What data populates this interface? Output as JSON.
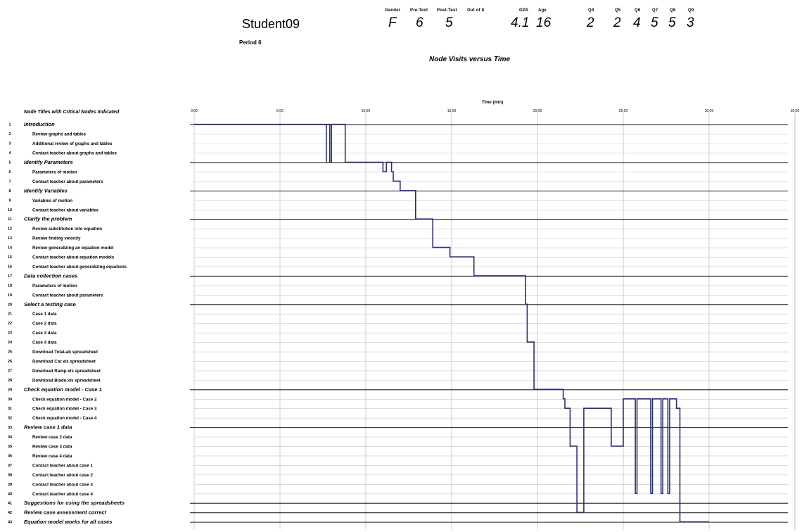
{
  "header": {
    "student": "Student09",
    "period": "Period 6",
    "chart_title": "Node Visits versus Time",
    "fields": [
      {
        "label": "Gender",
        "value": "F"
      },
      {
        "label": "Pre-Test",
        "value": "6"
      },
      {
        "label": "Post-Test",
        "value": "5"
      },
      {
        "label": "Out of 8",
        "value": ""
      },
      {
        "label": "GPA",
        "value": "4.1"
      },
      {
        "label": "Age",
        "value": "16"
      },
      {
        "label": "Q4",
        "value": "2"
      },
      {
        "label": "Q5",
        "value": "2"
      },
      {
        "label": "Q6",
        "value": "4"
      },
      {
        "label": "Q7",
        "value": "5"
      },
      {
        "label": "Q8",
        "value": "5"
      },
      {
        "label": "Q9",
        "value": "3"
      }
    ]
  },
  "chart_data": {
    "type": "line",
    "title": "Node Visits versus Time",
    "xlabel": "Time (min)",
    "ylabel": "Node Titles with Critical Nodes Indicated",
    "xlim": [
      0,
      35
    ],
    "xticks": [
      "0:00",
      "5:00",
      "10:00",
      "15:00",
      "20:00",
      "25:00",
      "30:00",
      "35:00"
    ],
    "line_color": "#2b2f7a",
    "nodes": [
      {
        "num": "1",
        "title": "Introduction",
        "critical": true
      },
      {
        "num": "2",
        "title": "Review graphs and tables",
        "critical": false
      },
      {
        "num": "3",
        "title": "Additional review of graphs and tables",
        "critical": false
      },
      {
        "num": "4",
        "title": "Contact teacher about graphs and tables",
        "critical": false
      },
      {
        "num": "5",
        "title": "Identify Parameters",
        "critical": true
      },
      {
        "num": "6",
        "title": "Parameters of motion",
        "critical": false
      },
      {
        "num": "7",
        "title": "Contact teacher about parameters",
        "critical": false
      },
      {
        "num": "8",
        "title": "Identify Variables",
        "critical": true
      },
      {
        "num": "9",
        "title": "Variables of motion",
        "critical": false
      },
      {
        "num": "10",
        "title": "Contact teacher about variables",
        "critical": false
      },
      {
        "num": "11",
        "title": "Clarify the problem",
        "critical": true
      },
      {
        "num": "12",
        "title": "Review substitution into equation",
        "critical": false
      },
      {
        "num": "13",
        "title": "Review finding velocity",
        "critical": false
      },
      {
        "num": "14",
        "title": "Review generalizing an equation model",
        "critical": false
      },
      {
        "num": "15",
        "title": "Contact teacher about equation models",
        "critical": false
      },
      {
        "num": "16",
        "title": "Contact teacher about generalizing equations",
        "critical": false
      },
      {
        "num": "17",
        "title": "Data collection cases",
        "critical": true
      },
      {
        "num": "18",
        "title": "Parameters of motion",
        "critical": false
      },
      {
        "num": "19",
        "title": "Contact teacher about parameters",
        "critical": false
      },
      {
        "num": "20",
        "title": "Select a testing case",
        "critical": true
      },
      {
        "num": "21",
        "title": "Case 1 data",
        "critical": false
      },
      {
        "num": "22",
        "title": "Case 2 data",
        "critical": false
      },
      {
        "num": "23",
        "title": "Case 3 data",
        "critical": false
      },
      {
        "num": "24",
        "title": "Case 4 data",
        "critical": false
      },
      {
        "num": "25",
        "title": "Download TotaLab spreadsheet",
        "critical": false
      },
      {
        "num": "26",
        "title": "Download Car.xls spreadsheet",
        "critical": false
      },
      {
        "num": "27",
        "title": "Download Ramp.xls spreadsheet",
        "critical": false
      },
      {
        "num": "28",
        "title": "Download Blade.xls spreadsheet",
        "critical": false
      },
      {
        "num": "29",
        "title": "Check equation model - Case 1",
        "critical": true
      },
      {
        "num": "30",
        "title": "Check equation model - Case 2",
        "critical": false
      },
      {
        "num": "31",
        "title": "Check equation model - Case 3",
        "critical": false
      },
      {
        "num": "32",
        "title": "Check equation model - Case 4",
        "critical": false
      },
      {
        "num": "33",
        "title": "Review case 1 data",
        "critical": true
      },
      {
        "num": "34",
        "title": "Review case 2 data",
        "critical": false
      },
      {
        "num": "35",
        "title": "Review case 3 data",
        "critical": false
      },
      {
        "num": "36",
        "title": "Review case 4 data",
        "critical": false
      },
      {
        "num": "37",
        "title": "Contact teacher about case 1",
        "critical": false
      },
      {
        "num": "38",
        "title": "Contact teacher about case 2",
        "critical": false
      },
      {
        "num": "39",
        "title": "Contact teacher about case 3",
        "critical": false
      },
      {
        "num": "40",
        "title": "Contact teacher about case 4",
        "critical": false
      },
      {
        "num": "41",
        "title": "Suggestions for using the spreadsheets",
        "critical": true
      },
      {
        "num": "42",
        "title": "Review case assessment correct",
        "critical": true
      },
      {
        "num": "43",
        "title": "Equation model works for all cases",
        "critical": true
      }
    ],
    "series": [
      {
        "x": [
          0,
          7.7,
          7.7,
          7.7,
          7.7,
          7.9,
          7.9,
          8.0,
          8.0,
          8.8,
          8.8,
          8.8,
          8.8,
          11.0,
          11.0,
          11.2,
          11.2,
          11.5,
          11.5,
          11.6,
          11.6,
          12.0,
          12.0,
          12.9,
          12.9,
          13.9,
          13.9,
          14.9,
          14.9,
          16.3,
          16.3,
          19.3,
          19.3,
          19.4,
          19.4,
          19.8,
          19.8,
          21.5,
          21.5,
          21.6,
          21.6,
          21.9,
          21.9,
          22.3,
          22.3,
          22.7,
          22.7,
          24.3,
          24.3,
          25.0,
          25.0,
          25.7,
          25.7,
          25.8,
          25.8,
          26.6,
          26.6,
          26.7,
          26.7,
          27.2,
          27.2,
          27.3,
          27.3,
          27.6,
          27.6,
          27.7,
          27.7,
          28.1,
          28.1,
          28.3,
          28.3,
          28.7,
          28.7,
          29.2,
          29.2,
          29.6,
          29.6,
          30.0
        ],
        "y": [
          1,
          1,
          5,
          5,
          1,
          1,
          5,
          5,
          1,
          1,
          5,
          5,
          5,
          5,
          6,
          6,
          5,
          5,
          6,
          6,
          7,
          7,
          8,
          8,
          11,
          11,
          14,
          14,
          15,
          15,
          17,
          17,
          20,
          20,
          24,
          24,
          29,
          29,
          30,
          30,
          31,
          31,
          35,
          35,
          42,
          42,
          31,
          31,
          35,
          35,
          30,
          30,
          40,
          40,
          30,
          30,
          40,
          40,
          30,
          30,
          40,
          40,
          30,
          30,
          40,
          40,
          30,
          30,
          31,
          31,
          43,
          43,
          43,
          43,
          43,
          43,
          43,
          43
        ]
      }
    ],
    "grid": true,
    "legend": "none"
  }
}
